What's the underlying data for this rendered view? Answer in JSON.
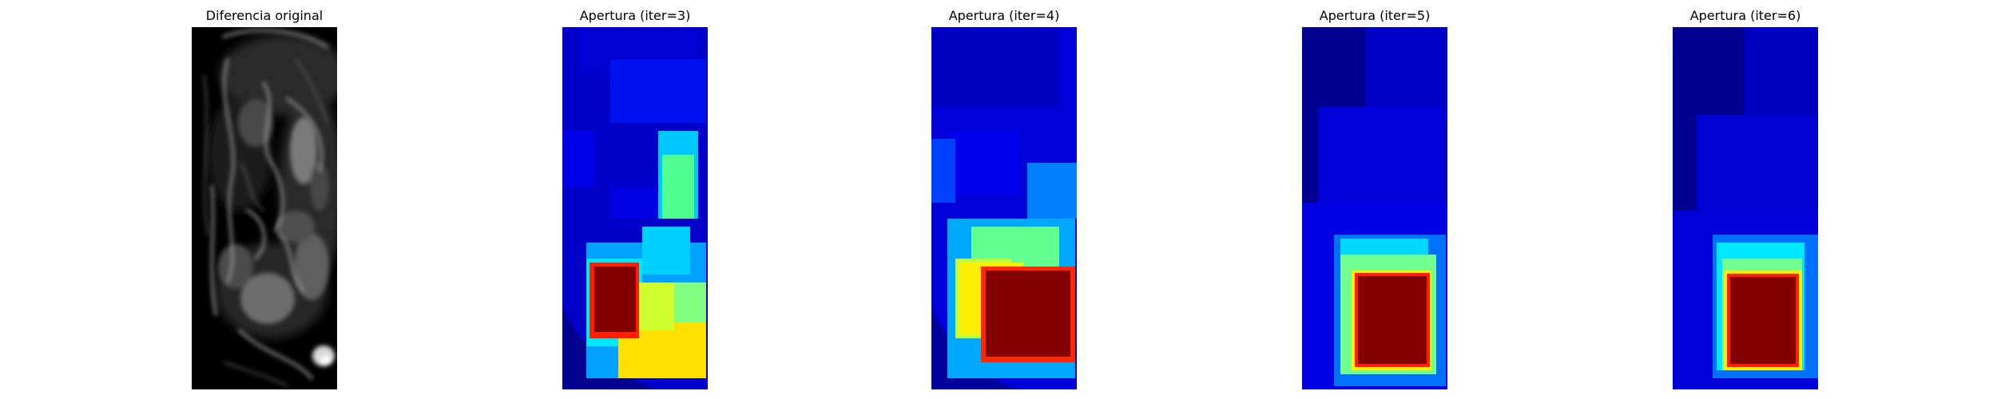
{
  "figure": {
    "panels": [
      {
        "title": "Diferencia original",
        "image": "grayscale difference image"
      },
      {
        "title": "Apertura (iter=3)",
        "image": "jet colormap opening result"
      },
      {
        "title": "Apertura (iter=4)",
        "image": "jet colormap opening result"
      },
      {
        "title": "Apertura (iter=5)",
        "image": "jet colormap opening result"
      },
      {
        "title": "Apertura (iter=6)",
        "image": "jet colormap opening result"
      }
    ]
  }
}
